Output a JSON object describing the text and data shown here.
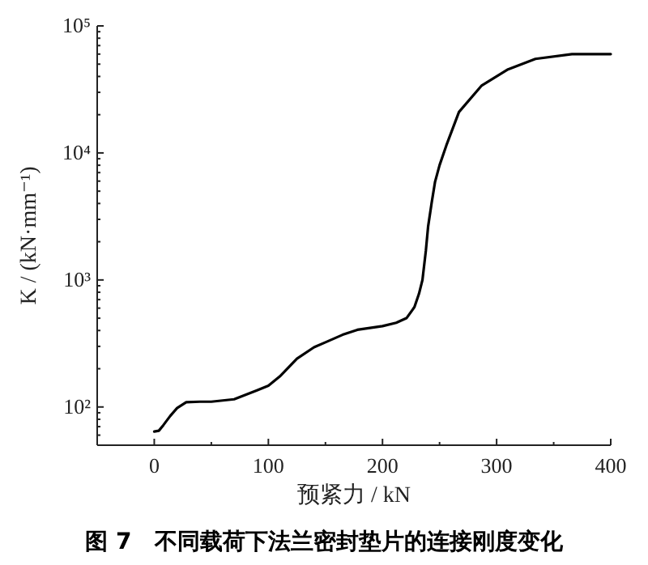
{
  "chart_data": {
    "type": "line",
    "title": "图 7　不同载荷下法兰密封垫片的连接刚度变化",
    "xlabel": "预紧力 / kN",
    "ylabel": "K / (kN·mm⁻¹)",
    "log": "y",
    "xlim": [
      -50,
      400
    ],
    "ylim": [
      50,
      100000
    ],
    "xticks": [
      0,
      100,
      200,
      300,
      400
    ],
    "yticks": [
      {
        "value": 100,
        "label": "10²"
      },
      {
        "value": 1000,
        "label": "10³"
      },
      {
        "value": 10000,
        "label": "10⁴"
      },
      {
        "value": 100000,
        "label": "10⁵"
      }
    ],
    "series": [
      {
        "color": "#000000",
        "x": [
          0,
          4,
          8,
          14,
          20,
          28,
          40,
          50,
          70,
          90,
          100,
          110,
          125,
          140,
          150,
          165,
          178,
          200,
          212,
          221,
          228,
          232,
          235,
          238,
          240,
          243,
          246,
          250,
          256,
          267,
          287,
          310,
          334,
          366,
          400
        ],
        "values": [
          64,
          65,
          72,
          85,
          98,
          109,
          110,
          110,
          115,
          135,
          147,
          174,
          240,
          295,
          323,
          370,
          405,
          433,
          460,
          500,
          612,
          780,
          1000,
          1700,
          2650,
          4000,
          5900,
          8000,
          11500,
          21000,
          34000,
          45500,
          55000,
          60000,
          60000
        ]
      }
    ]
  }
}
